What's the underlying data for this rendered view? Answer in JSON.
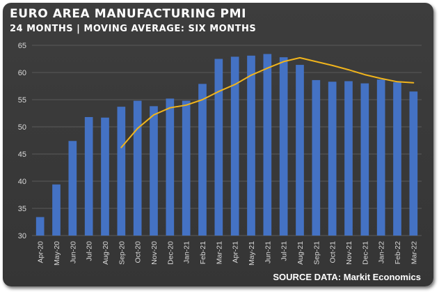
{
  "title": "EURO AREA MANUFACTURING PMI",
  "subtitle": "24 MONTHS | MOVING AVERAGE: SIX MONTHS",
  "source": "SOURCE DATA: Markit Economics",
  "colors": {
    "bar": "#4472c4",
    "line": "#f0b41c",
    "grid": "#5a5a5a",
    "background": "#3a3a3a"
  },
  "chart_data": {
    "type": "bar",
    "title": "EURO AREA MANUFACTURING PMI",
    "subtitle": "24 MONTHS | MOVING AVERAGE: SIX MONTHS",
    "categories": [
      "Apr-20",
      "May-20",
      "Jun-20",
      "Jul-20",
      "Aug-20",
      "Sep-20",
      "Oct-20",
      "Nov-20",
      "Dec-20",
      "Jan-21",
      "Feb-21",
      "Mar-21",
      "Apr-21",
      "May-21",
      "Jun-21",
      "Jul-21",
      "Aug-21",
      "Sep-21",
      "Oct-21",
      "Nov-21",
      "Dec-21",
      "Jan-22",
      "Feb-22",
      "Mar-22"
    ],
    "series": [
      {
        "type": "bar",
        "values": [
          33.4,
          39.4,
          47.4,
          51.8,
          51.7,
          53.7,
          54.8,
          53.8,
          55.2,
          54.8,
          57.9,
          62.5,
          62.9,
          63.1,
          63.4,
          62.8,
          61.4,
          58.6,
          58.3,
          58.4,
          58.0,
          58.7,
          58.2,
          56.5
        ]
      },
      {
        "type": "line",
        "values": [
          null,
          null,
          null,
          null,
          null,
          46.2,
          49.7,
          52.2,
          53.5,
          54.0,
          55.0,
          56.5,
          57.8,
          59.5,
          60.8,
          62.0,
          62.7,
          62.0,
          61.3,
          60.5,
          59.6,
          58.9,
          58.3,
          58.1
        ]
      }
    ],
    "ylim": [
      30,
      65
    ],
    "yticks": [
      "30",
      "35",
      "40",
      "45",
      "50",
      "55",
      "60",
      "65"
    ],
    "xlabel": "",
    "ylabel": "",
    "grid": true,
    "legend": "none"
  }
}
